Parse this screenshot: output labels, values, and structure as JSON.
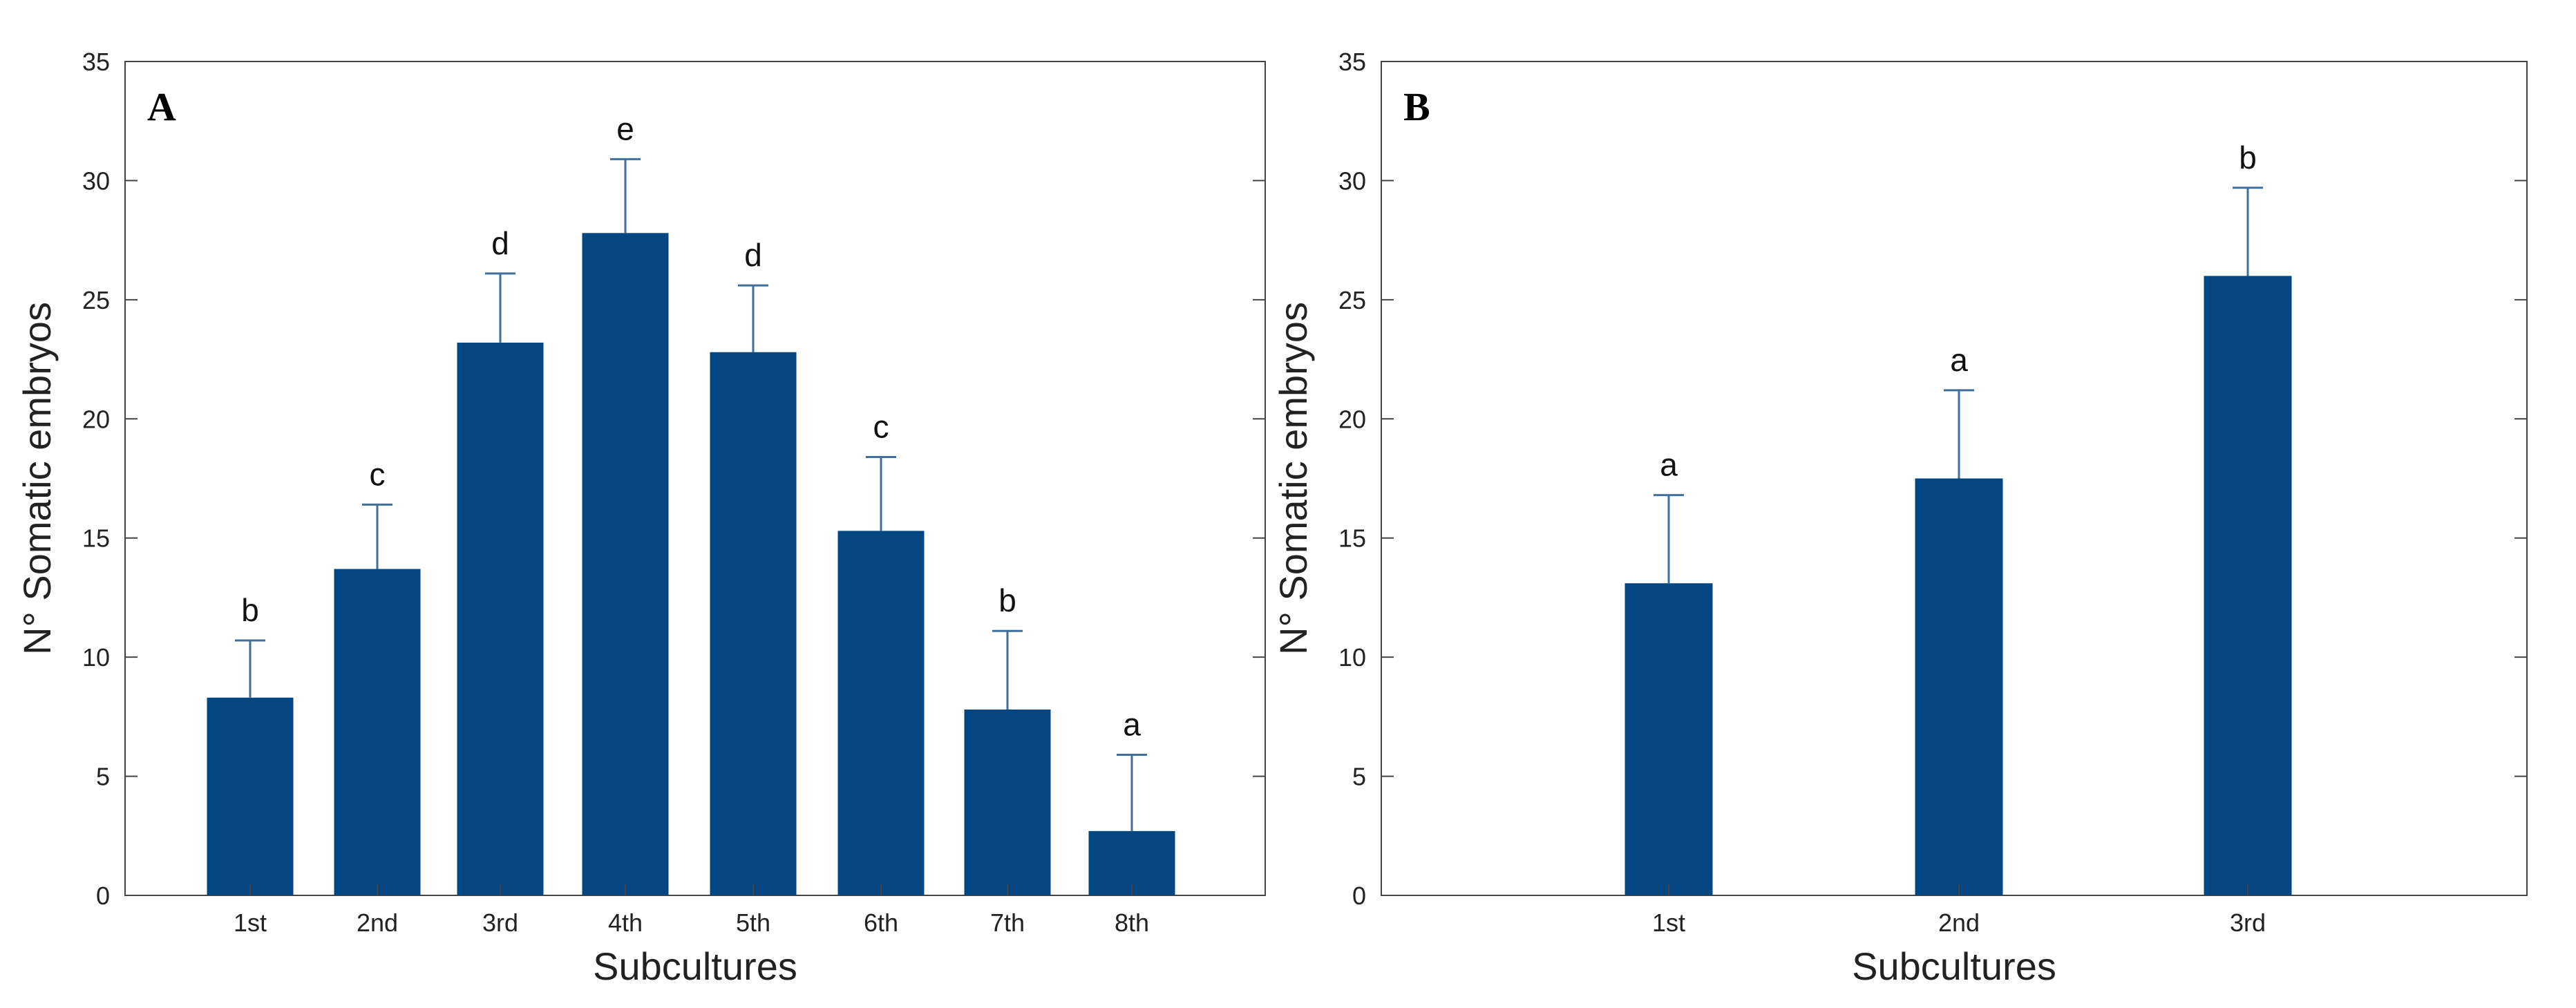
{
  "colors": {
    "bar": "#034681",
    "error": "#3f6f9c",
    "axis": "#444444",
    "text": "#222222"
  },
  "chart_data": [
    {
      "type": "bar",
      "panel": "A",
      "categories": [
        "1st",
        "2nd",
        "3rd",
        "4th",
        "5th",
        "6th",
        "7th",
        "8th"
      ],
      "values": [
        8.3,
        13.7,
        23.2,
        27.8,
        22.8,
        15.3,
        7.8,
        2.7
      ],
      "error_upper": [
        10.7,
        16.4,
        26.1,
        30.9,
        25.6,
        18.4,
        11.1,
        5.9
      ],
      "significance": [
        "b",
        "c",
        "d",
        "e",
        "d",
        "c",
        "b",
        "a"
      ],
      "xlabel": "Subcultures",
      "ylabel": "N° Somatic embryos",
      "ylim": [
        0,
        35
      ],
      "yticks": [
        0,
        5,
        10,
        15,
        20,
        25,
        30,
        35
      ]
    },
    {
      "type": "bar",
      "panel": "B",
      "categories": [
        "1st",
        "2nd",
        "3rd"
      ],
      "values": [
        13.1,
        17.5,
        26.0
      ],
      "error_upper": [
        16.8,
        21.2,
        29.7
      ],
      "significance": [
        "a",
        "a",
        "b"
      ],
      "xlabel": "Subcultures",
      "ylabel": "N° Somatic embryos",
      "ylim": [
        0,
        35
      ],
      "yticks": [
        0,
        5,
        10,
        15,
        20,
        25,
        30,
        35
      ]
    }
  ]
}
